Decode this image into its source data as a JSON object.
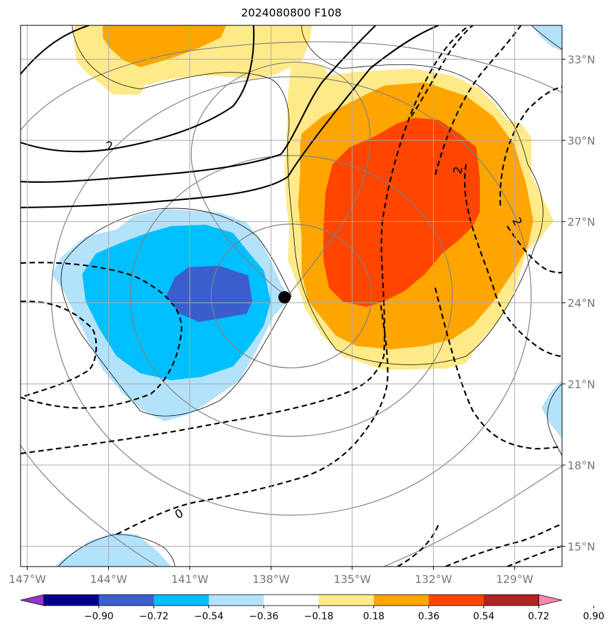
{
  "title": "2024080800 F108",
  "map": {
    "lon_range": [
      -147.25,
      -127.25
    ],
    "lat_range": [
      14.25,
      34.25
    ],
    "lon_ticks": [
      {
        "value": -147,
        "label": "147°W"
      },
      {
        "value": -144,
        "label": "144°W"
      },
      {
        "value": -141,
        "label": "141°W"
      },
      {
        "value": -138,
        "label": "138°W"
      },
      {
        "value": -135,
        "label": "135°W"
      },
      {
        "value": -132,
        "label": "132°W"
      },
      {
        "value": -129,
        "label": "129°W"
      }
    ],
    "lat_ticks": [
      {
        "value": 15,
        "label": "15°N"
      },
      {
        "value": 18,
        "label": "18°N"
      },
      {
        "value": 21,
        "label": "21°N"
      },
      {
        "value": 24,
        "label": "24°N"
      },
      {
        "value": 27,
        "label": "27°N"
      },
      {
        "value": 30,
        "label": "30°N"
      },
      {
        "value": 33,
        "label": "33°N"
      }
    ],
    "grid": true,
    "storm_center": {
      "lon": -137.5,
      "lat": 24.2
    },
    "contour_labels": [
      {
        "text": "2",
        "lon": -143.95,
        "lat": 29.8,
        "rotate": -10
      },
      {
        "text": "2",
        "lon": -131.1,
        "lat": 28.9,
        "rotate": -80
      },
      {
        "text": "2",
        "lon": -128.9,
        "lat": 27.0,
        "rotate": 62
      },
      {
        "text": "0",
        "lon": -141.4,
        "lat": 16.2,
        "rotate": -28
      }
    ]
  },
  "colorbar": {
    "colors": [
      "#9932cc",
      "#00008b",
      "#3a5fcd",
      "#00bfff",
      "#b3e2fb",
      "#ffffff",
      "#ffea8a",
      "#ffa500",
      "#ff4500",
      "#b22222",
      "#ff88b0"
    ],
    "tick_labels": [
      "−0.90",
      "−0.72",
      "−0.54",
      "−0.36",
      "−0.18",
      "0.18",
      "0.36",
      "0.54",
      "0.72",
      "0.90"
    ],
    "levels": [
      -0.9,
      -0.72,
      -0.54,
      -0.36,
      -0.18,
      0.18,
      0.36,
      0.54,
      0.72,
      0.9
    ],
    "extend": "both"
  }
}
